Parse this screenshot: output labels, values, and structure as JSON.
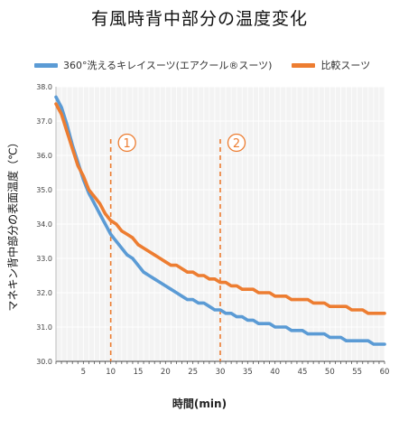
{
  "chart_data": {
    "type": "line",
    "title": "有風時背中部分の温度変化",
    "xlabel": "時間(min)",
    "ylabel": "マネキン背中部分の表面温度（℃）",
    "xlim": [
      0,
      60
    ],
    "ylim": [
      30.0,
      38.0
    ],
    "x_ticks": [
      5,
      10,
      15,
      20,
      25,
      30,
      35,
      40,
      45,
      50,
      55,
      60
    ],
    "y_ticks": [
      "30.0",
      "31.0",
      "32.0",
      "33.0",
      "34.0",
      "35.0",
      "36.0",
      "37.0",
      "38.0"
    ],
    "legend_position": "top",
    "grid": true,
    "series": [
      {
        "name": "360°洗えるキレイスーツ(エアクール®スーツ)",
        "color": "#5b9bd5",
        "x": [
          0,
          1,
          2,
          3,
          4,
          5,
          6,
          7,
          8,
          9,
          10,
          11,
          12,
          13,
          14,
          15,
          16,
          17,
          18,
          19,
          20,
          21,
          22,
          23,
          24,
          25,
          26,
          27,
          28,
          29,
          30,
          31,
          32,
          33,
          34,
          35,
          36,
          37,
          38,
          39,
          40,
          41,
          42,
          43,
          44,
          45,
          46,
          47,
          48,
          49,
          50,
          51,
          52,
          53,
          54,
          55,
          56,
          57,
          58,
          59,
          60
        ],
        "y": [
          37.7,
          37.4,
          36.9,
          36.3,
          35.8,
          35.3,
          34.9,
          34.6,
          34.3,
          34.0,
          33.7,
          33.5,
          33.3,
          33.1,
          33.0,
          32.8,
          32.6,
          32.5,
          32.4,
          32.3,
          32.2,
          32.1,
          32.0,
          31.9,
          31.8,
          31.8,
          31.7,
          31.7,
          31.6,
          31.5,
          31.5,
          31.4,
          31.4,
          31.3,
          31.3,
          31.2,
          31.2,
          31.1,
          31.1,
          31.1,
          31.0,
          31.0,
          31.0,
          30.9,
          30.9,
          30.9,
          30.8,
          30.8,
          30.8,
          30.8,
          30.7,
          30.7,
          30.7,
          30.6,
          30.6,
          30.6,
          30.6,
          30.6,
          30.5,
          30.5,
          30.5
        ]
      },
      {
        "name": "比較スーツ",
        "color": "#ed7d31",
        "x": [
          0,
          1,
          2,
          3,
          4,
          5,
          6,
          7,
          8,
          9,
          10,
          11,
          12,
          13,
          14,
          15,
          16,
          17,
          18,
          19,
          20,
          21,
          22,
          23,
          24,
          25,
          26,
          27,
          28,
          29,
          30,
          31,
          32,
          33,
          34,
          35,
          36,
          37,
          38,
          39,
          40,
          41,
          42,
          43,
          44,
          45,
          46,
          47,
          48,
          49,
          50,
          51,
          52,
          53,
          54,
          55,
          56,
          57,
          58,
          59,
          60
        ],
        "y": [
          37.5,
          37.2,
          36.7,
          36.2,
          35.7,
          35.4,
          35.0,
          34.8,
          34.6,
          34.3,
          34.1,
          34.0,
          33.8,
          33.7,
          33.6,
          33.4,
          33.3,
          33.2,
          33.1,
          33.0,
          32.9,
          32.8,
          32.8,
          32.7,
          32.6,
          32.6,
          32.5,
          32.5,
          32.4,
          32.4,
          32.3,
          32.3,
          32.2,
          32.2,
          32.1,
          32.1,
          32.1,
          32.0,
          32.0,
          32.0,
          31.9,
          31.9,
          31.9,
          31.8,
          31.8,
          31.8,
          31.8,
          31.7,
          31.7,
          31.7,
          31.6,
          31.6,
          31.6,
          31.6,
          31.5,
          31.5,
          31.5,
          31.4,
          31.4,
          31.4,
          31.4
        ]
      }
    ],
    "markers": [
      {
        "x": 10,
        "label": "1"
      },
      {
        "x": 30,
        "label": "2"
      }
    ]
  }
}
